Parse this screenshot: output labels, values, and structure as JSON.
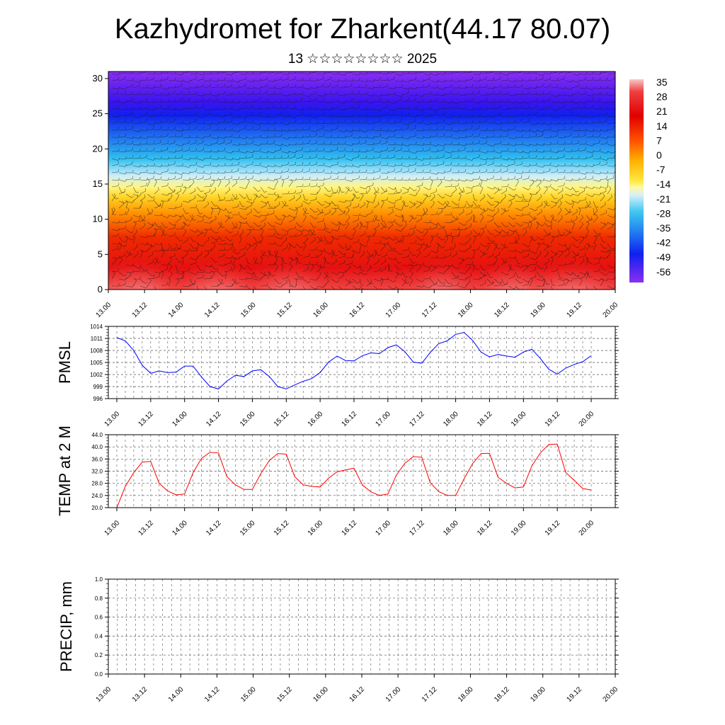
{
  "header": {
    "title": "Kazhydromet for Zharkent(44.17 80.07)",
    "subtitle": "13 ☆☆☆☆☆☆☆☆ 2025"
  },
  "chart_data": [
    {
      "type": "heatmap",
      "title": "Kazhydromet for Zharkent(44.17 80.07)",
      "x_tick_labels": [
        "13.00",
        "13.12",
        "14.00",
        "14.12",
        "15.00",
        "15.12",
        "16.00",
        "16.12",
        "17.00",
        "17.12",
        "18.00",
        "18.12",
        "19.00",
        "19.12",
        "20.00"
      ],
      "y_ticks": [
        0,
        5,
        10,
        15,
        20,
        25,
        30
      ],
      "ylim": [
        0,
        31
      ],
      "colorbar_labels": [
        "35",
        "28",
        "21",
        "14",
        "7",
        "0",
        "-7",
        "-14",
        "-21",
        "-28",
        "-35",
        "-42",
        "-49",
        "-56"
      ],
      "colorbar_range": [
        -60,
        38
      ],
      "overlay": "wind barbs",
      "surface_temperature_maxima_x": [
        13.25,
        13.5,
        14.5,
        15.5,
        17.6,
        18.6,
        19.4
      ]
    },
    {
      "type": "line",
      "ylabel": "PMSL",
      "x_tick_labels": [
        "13.00",
        "13.12",
        "14.00",
        "14.12",
        "15.00",
        "15.12",
        "16.00",
        "16.12",
        "17.00",
        "17.12",
        "18.00",
        "18.12",
        "19.00",
        "19.12",
        "20.00"
      ],
      "y_tick_labels": [
        "1014",
        "1011",
        "1008",
        "1005",
        "1002",
        "999",
        "996"
      ],
      "ylim": [
        996,
        1014
      ],
      "color": "#0000ff",
      "x": [
        13.0,
        13.125,
        13.25,
        13.375,
        13.5,
        13.625,
        13.75,
        13.875,
        14.0,
        14.125,
        14.25,
        14.375,
        14.5,
        14.625,
        14.75,
        14.875,
        15.0,
        15.125,
        15.25,
        15.375,
        15.5,
        15.625,
        15.75,
        15.875,
        16.0,
        16.125,
        16.25,
        16.375,
        16.5,
        16.625,
        16.75,
        16.875,
        17.0,
        17.125,
        17.25,
        17.375,
        17.5,
        17.625,
        17.75,
        17.875,
        18.0,
        18.125,
        18.25,
        18.375,
        18.5,
        18.625,
        18.75,
        18.875,
        19.0,
        19.125,
        19.25,
        19.375,
        19.5,
        19.625,
        19.75,
        19.875,
        20.0
      ],
      "values": [
        1011.2,
        1010.4,
        1008.0,
        1004.3,
        1002.3,
        1002.9,
        1002.5,
        1002.6,
        1004.1,
        1004.1,
        1001.4,
        999.0,
        998.4,
        1000.4,
        1001.8,
        1001.5,
        1002.9,
        1003.2,
        1001.5,
        999.0,
        998.4,
        999.4,
        1000.3,
        1001.0,
        1002.5,
        1005.1,
        1006.6,
        1005.5,
        1005.4,
        1006.7,
        1007.4,
        1007.2,
        1008.7,
        1009.4,
        1007.7,
        1005.1,
        1004.8,
        1007.5,
        1009.7,
        1010.4,
        1012.0,
        1012.5,
        1010.5,
        1007.6,
        1006.4,
        1007.0,
        1006.6,
        1006.3,
        1007.6,
        1008.3,
        1006.0,
        1003.3,
        1002.1,
        1003.6,
        1004.5,
        1005.2,
        1006.7
      ],
      "grid": true
    },
    {
      "type": "line",
      "ylabel": "TEMP at 2 M",
      "x_tick_labels": [
        "13.00",
        "13.12",
        "14.00",
        "14.12",
        "15.00",
        "15.12",
        "16.00",
        "16.12",
        "17.00",
        "17.12",
        "18.00",
        "18.12",
        "19.00",
        "19.12",
        "20.00"
      ],
      "y_tick_labels": [
        "44.0",
        "40.0",
        "36.0",
        "32.0",
        "28.0",
        "24.0",
        "20.0"
      ],
      "ylim": [
        20,
        44
      ],
      "color": "#ff0000",
      "x": [
        13.0,
        13.125,
        13.25,
        13.375,
        13.5,
        13.625,
        13.75,
        13.875,
        14.0,
        14.125,
        14.25,
        14.375,
        14.5,
        14.625,
        14.75,
        14.875,
        15.0,
        15.125,
        15.25,
        15.375,
        15.5,
        15.625,
        15.75,
        15.875,
        16.0,
        16.125,
        16.25,
        16.375,
        16.5,
        16.625,
        16.75,
        16.875,
        17.0,
        17.125,
        17.25,
        17.375,
        17.5,
        17.625,
        17.75,
        17.875,
        18.0,
        18.125,
        18.25,
        18.375,
        18.5,
        18.625,
        18.75,
        18.875,
        19.0,
        19.125,
        19.25,
        19.375,
        19.5,
        19.625,
        19.75,
        19.875,
        20.0
      ],
      "values": [
        20.0,
        27.0,
        31.5,
        35.0,
        35.2,
        28.0,
        25.5,
        24.2,
        24.5,
        31.5,
        36.2,
        38.2,
        38.0,
        30.2,
        27.5,
        26.0,
        26.0,
        31.2,
        35.5,
        37.8,
        37.6,
        30.2,
        27.5,
        27.0,
        26.8,
        29.7,
        31.8,
        32.4,
        33.0,
        27.4,
        25.2,
        24.0,
        24.5,
        30.7,
        34.6,
        36.8,
        36.6,
        28.2,
        25.3,
        24.0,
        24.0,
        29.5,
        34.5,
        37.8,
        37.9,
        30.0,
        28.0,
        26.5,
        26.8,
        33.8,
        38.0,
        40.8,
        40.9,
        31.5,
        29.0,
        26.3,
        25.8
      ],
      "grid": true
    },
    {
      "type": "bar",
      "ylabel": "PRECIP, mm",
      "x_tick_labels": [
        "13.00",
        "13.12",
        "14.00",
        "14.12",
        "15.00",
        "15.12",
        "16.00",
        "16.12",
        "17.00",
        "17.12",
        "18.00",
        "18.12",
        "19.00",
        "19.12",
        "20.00"
      ],
      "y_tick_labels": [
        "1.0",
        "0.8",
        "0.6",
        "0.4",
        "0.2",
        "0.0"
      ],
      "ylim": [
        0,
        1
      ],
      "values_note": "",
      "values": [
        0,
        0,
        0,
        0,
        0,
        0,
        0,
        0,
        0,
        0,
        0,
        0,
        0,
        0,
        0,
        0,
        0,
        0,
        0,
        0,
        0,
        0,
        0,
        0,
        0,
        0,
        0,
        0,
        0,
        0,
        0,
        0,
        0,
        0,
        0,
        0,
        0,
        0,
        0,
        0,
        0,
        0,
        0,
        0,
        0,
        0,
        0,
        0,
        0,
        0,
        0,
        0,
        0,
        0,
        0,
        0
      ],
      "grid": true
    }
  ]
}
